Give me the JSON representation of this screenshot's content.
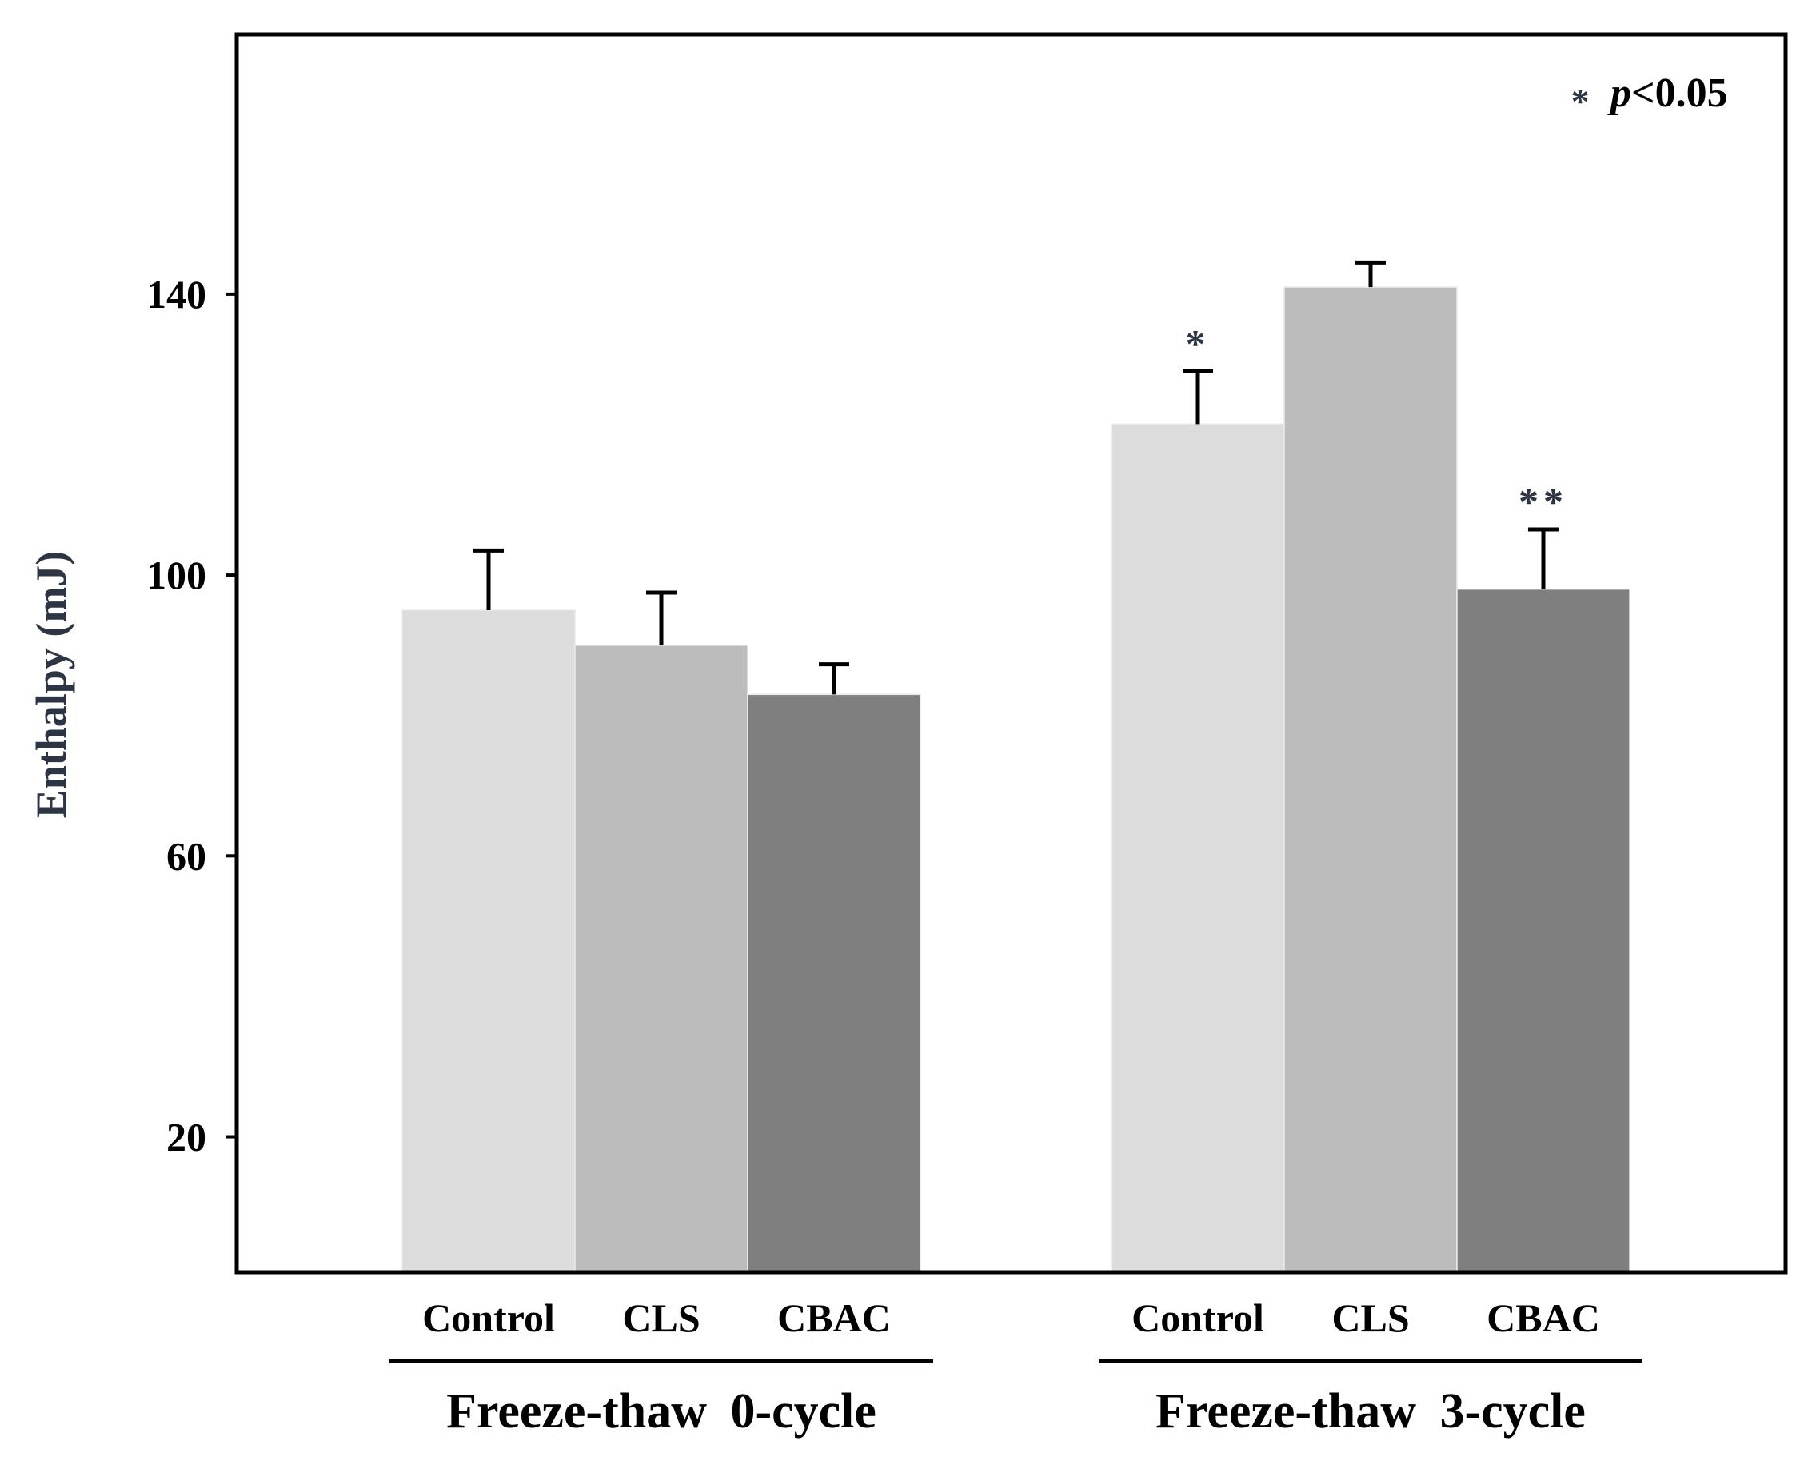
{
  "chart_data": {
    "type": "bar",
    "ylabel": "Enthalpy (mJ)",
    "ylim": [
      0.7,
      177
    ],
    "yticks": [
      20,
      60,
      100,
      140
    ],
    "annotation": {
      "star": "*",
      "p_label": "p",
      "p_value": "<0.05"
    },
    "colors": {
      "Control": "#dcdcdc",
      "CLS": "#bcbcbc",
      "CBAC": "#7f7f7f"
    },
    "groups": [
      {
        "label": "Freeze-thaw 0-cycle",
        "bars": [
          {
            "category": "Control",
            "value": 95,
            "error": 8.5,
            "sig": ""
          },
          {
            "category": "CLS",
            "value": 90,
            "error": 7.5,
            "sig": ""
          },
          {
            "category": "CBAC",
            "value": 83,
            "error": 4.3,
            "sig": ""
          }
        ]
      },
      {
        "label": "Freeze-thaw 3-cycle",
        "bars": [
          {
            "category": "Control",
            "value": 121.5,
            "error": 7.5,
            "sig": "*"
          },
          {
            "category": "CLS",
            "value": 141,
            "error": 3.5,
            "sig": ""
          },
          {
            "category": "CBAC",
            "value": 98,
            "error": 8.5,
            "sig": "**"
          }
        ]
      }
    ]
  }
}
